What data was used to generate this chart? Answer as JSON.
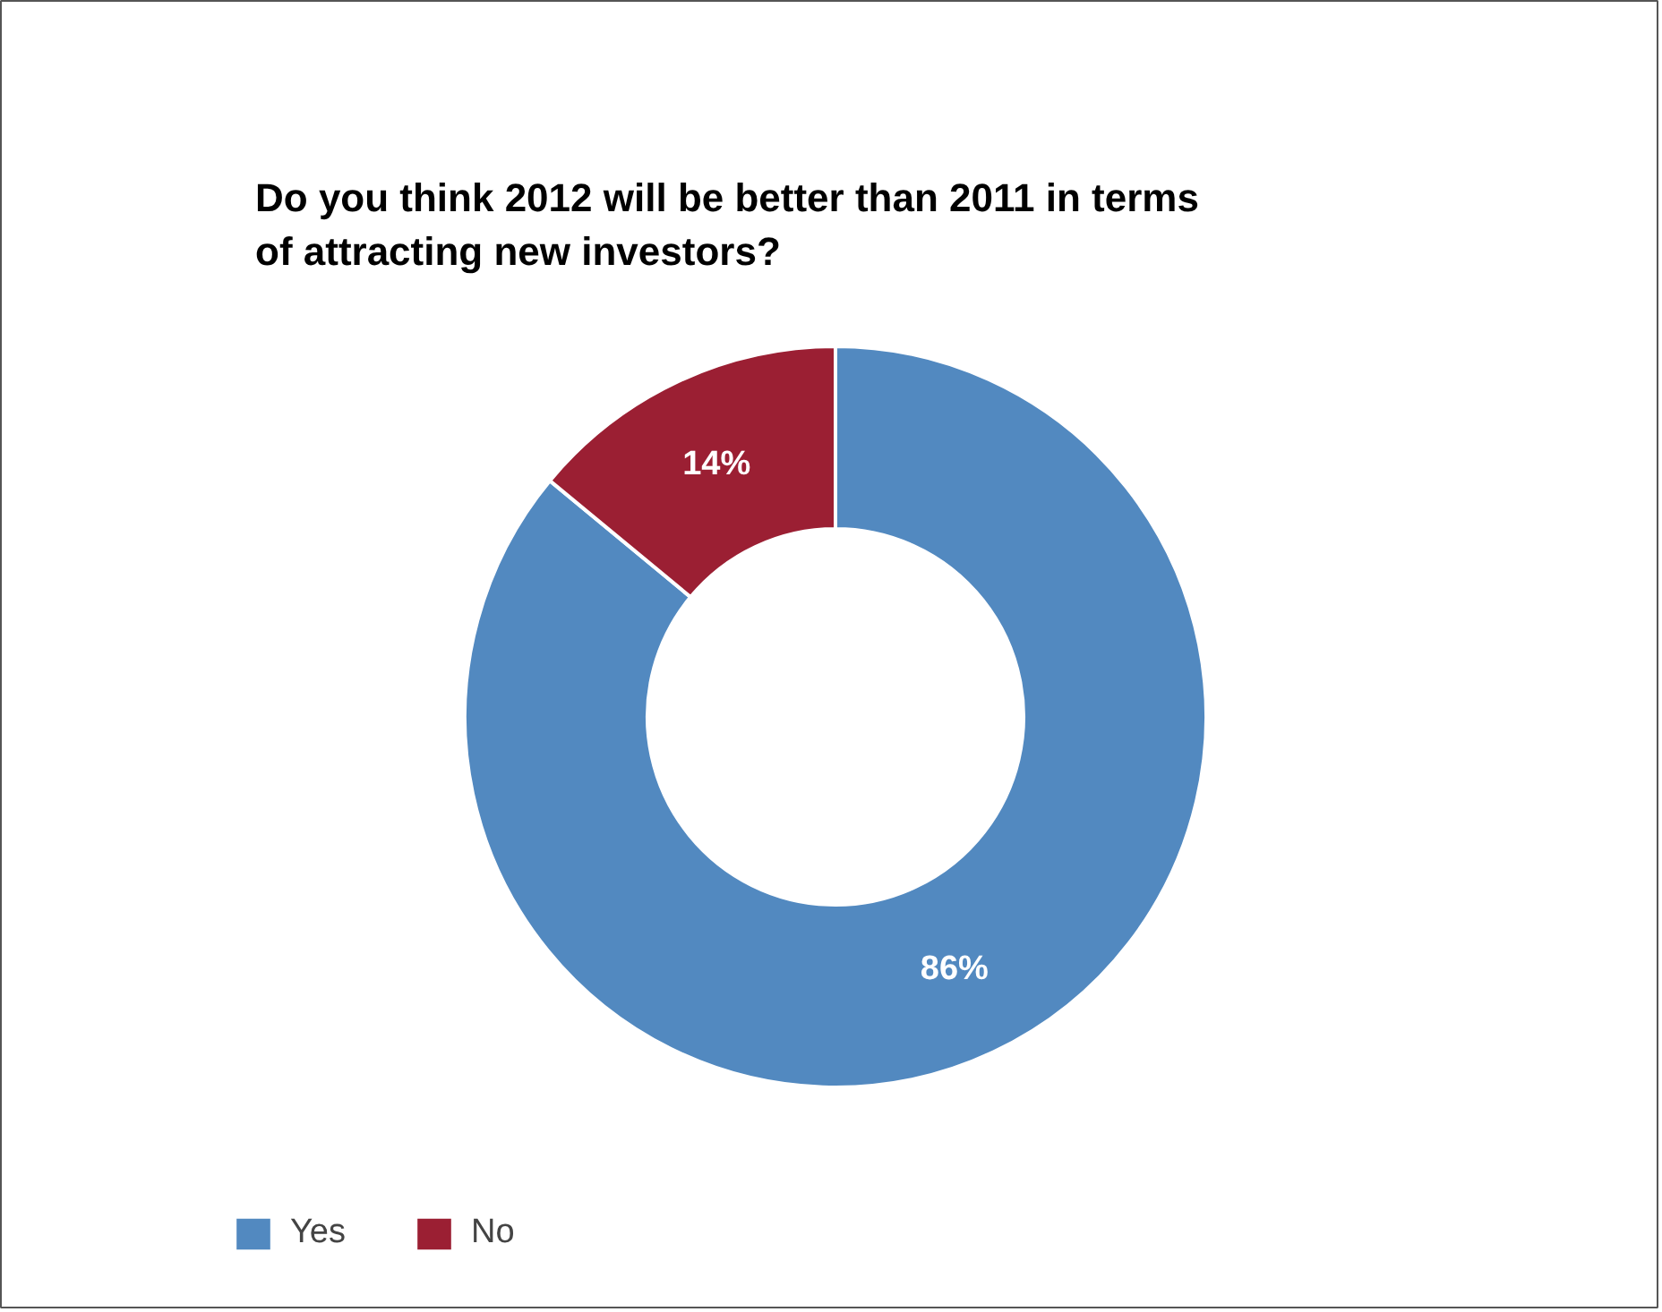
{
  "chart_data": {
    "type": "donut",
    "title": "Do you think 2012 will be better than 2011 in terms of attracting new investors?",
    "categories": [
      "Yes",
      "No"
    ],
    "values": [
      86,
      14
    ],
    "colors": [
      "#5289c0",
      "#9b1f33"
    ],
    "value_labels": [
      "86%",
      "14%"
    ],
    "legend": "bottom left"
  }
}
